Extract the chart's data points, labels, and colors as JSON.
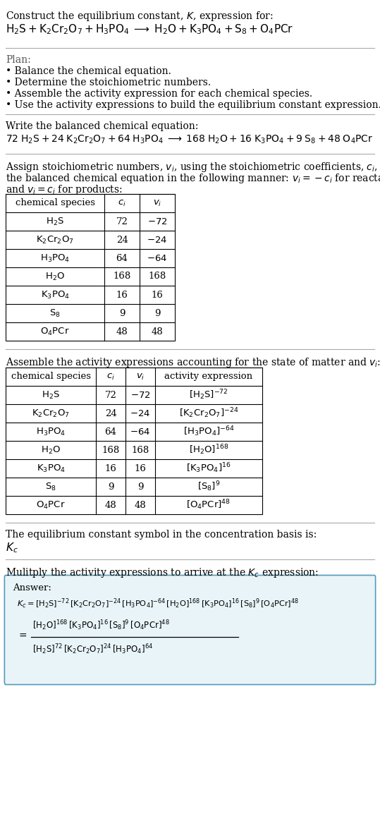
{
  "title_line1": "Construct the equilibrium constant, $K$, expression for:",
  "bg_color": "#ffffff",
  "text_color": "#000000",
  "table_border_color": "#000000",
  "answer_box_color": "#e8f4f8",
  "answer_box_border": "#5599bb",
  "table1_rows": [
    [
      "$\\mathrm{H_2S}$",
      "72",
      "$-72$"
    ],
    [
      "$\\mathrm{K_2Cr_2O_7}$",
      "24",
      "$-24$"
    ],
    [
      "$\\mathrm{H_3PO_4}$",
      "64",
      "$-64$"
    ],
    [
      "$\\mathrm{H_2O}$",
      "168",
      "168"
    ],
    [
      "$\\mathrm{K_3PO_4}$",
      "16",
      "16"
    ],
    [
      "$\\mathrm{S_8}$",
      "9",
      "9"
    ],
    [
      "$\\mathrm{O_4PCr}$",
      "48",
      "48"
    ]
  ],
  "table2_rows": [
    [
      "$\\mathrm{H_2S}$",
      "72",
      "$-72$",
      "$[\\mathrm{H_2S}]^{-72}$"
    ],
    [
      "$\\mathrm{K_2Cr_2O_7}$",
      "24",
      "$-24$",
      "$[\\mathrm{K_2Cr_2O_7}]^{-24}$"
    ],
    [
      "$\\mathrm{H_3PO_4}$",
      "64",
      "$-64$",
      "$[\\mathrm{H_3PO_4}]^{-64}$"
    ],
    [
      "$\\mathrm{H_2O}$",
      "168",
      "168",
      "$[\\mathrm{H_2O}]^{168}$"
    ],
    [
      "$\\mathrm{K_3PO_4}$",
      "16",
      "16",
      "$[\\mathrm{K_3PO_4}]^{16}$"
    ],
    [
      "$\\mathrm{S_8}$",
      "9",
      "9",
      "$[\\mathrm{S_8}]^{9}$"
    ],
    [
      "$\\mathrm{O_4PCr}$",
      "48",
      "48",
      "$[\\mathrm{O_4PCr}]^{48}$"
    ]
  ]
}
